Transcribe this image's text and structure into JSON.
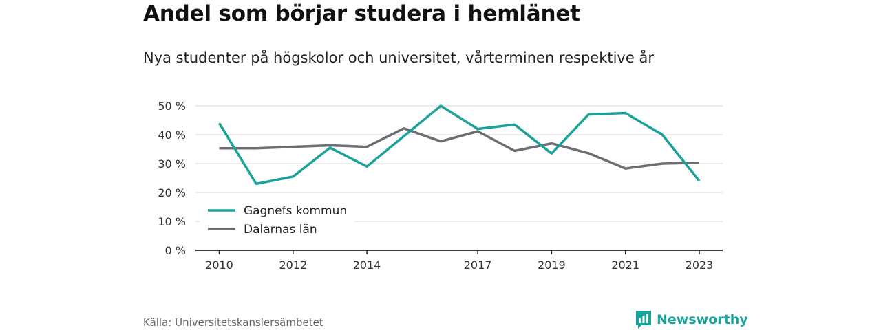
{
  "title": "Andel som börjar studera i hemlänet",
  "subtitle": "Nya studenter på högskolor och universitet, vårterminen respektive år",
  "source": "Källa: Universitetskanslersämbetet",
  "brand": "Newsworthy",
  "colors": {
    "gagnef": "#1aa39a",
    "dalarna": "#6e6d75",
    "grid": "#dddddd",
    "axis": "#222222",
    "brand": "#1aa39a"
  },
  "chart_data": {
    "type": "line",
    "x": [
      2010,
      2011,
      2012,
      2013,
      2014,
      2015,
      2016,
      2017,
      2018,
      2019,
      2020,
      2021,
      2022,
      2023
    ],
    "x_ticks": [
      2010,
      2012,
      2014,
      2017,
      2019,
      2021,
      2023
    ],
    "x_tick_labels": [
      "2010",
      "2012",
      "2014",
      "2017",
      "2019",
      "2021",
      "2023"
    ],
    "y_ticks": [
      0,
      10,
      20,
      30,
      40,
      50
    ],
    "y_tick_labels": [
      "0 %",
      "10 %",
      "20 %",
      "30 %",
      "40 %",
      "50 %"
    ],
    "ylim": [
      0,
      50
    ],
    "grid": true,
    "legend_position": "bottom-left",
    "series": [
      {
        "name": "Gagnefs kommun",
        "color": "#1aa39a",
        "values": [
          44,
          23,
          25.5,
          35.5,
          29,
          39.5,
          50,
          42,
          43.5,
          33.5,
          47,
          47.5,
          40,
          24
        ]
      },
      {
        "name": "Dalarnas län",
        "color": "#6e6d75",
        "values": [
          35.3,
          35.3,
          35.8,
          36.3,
          35.8,
          42.2,
          37.7,
          41.2,
          34.4,
          37,
          33.6,
          28.3,
          30,
          30.3
        ]
      }
    ]
  }
}
